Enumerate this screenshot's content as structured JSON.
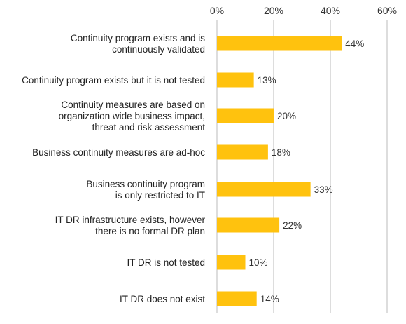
{
  "chart_data": {
    "type": "bar",
    "orientation": "horizontal",
    "x_ticks": [
      "0%",
      "20%",
      "40%",
      "60%"
    ],
    "xlim": [
      0,
      60
    ],
    "grid": true,
    "bar_color": "#FFC20E",
    "grid_color": "#BBBBBB",
    "categories": [
      [
        "Continuity program exists and is",
        "continuously validated"
      ],
      [
        "Continuity program exists but it is not tested"
      ],
      [
        "Continuity measures are based on",
        "organization wide business impact,",
        "threat and risk assessment"
      ],
      [
        "Business continuity measures are ad-hoc"
      ],
      [
        "Business continuity program",
        "is only restricted to IT"
      ],
      [
        "IT DR infrastructure exists, however",
        "there is no formal DR plan"
      ],
      [
        "IT DR is not tested"
      ],
      [
        "IT DR does not exist"
      ]
    ],
    "values": [
      44,
      13,
      20,
      18,
      33,
      22,
      10,
      14
    ],
    "value_labels": [
      "44%",
      "13%",
      "20%",
      "18%",
      "33%",
      "22%",
      "10%",
      "14%"
    ]
  }
}
